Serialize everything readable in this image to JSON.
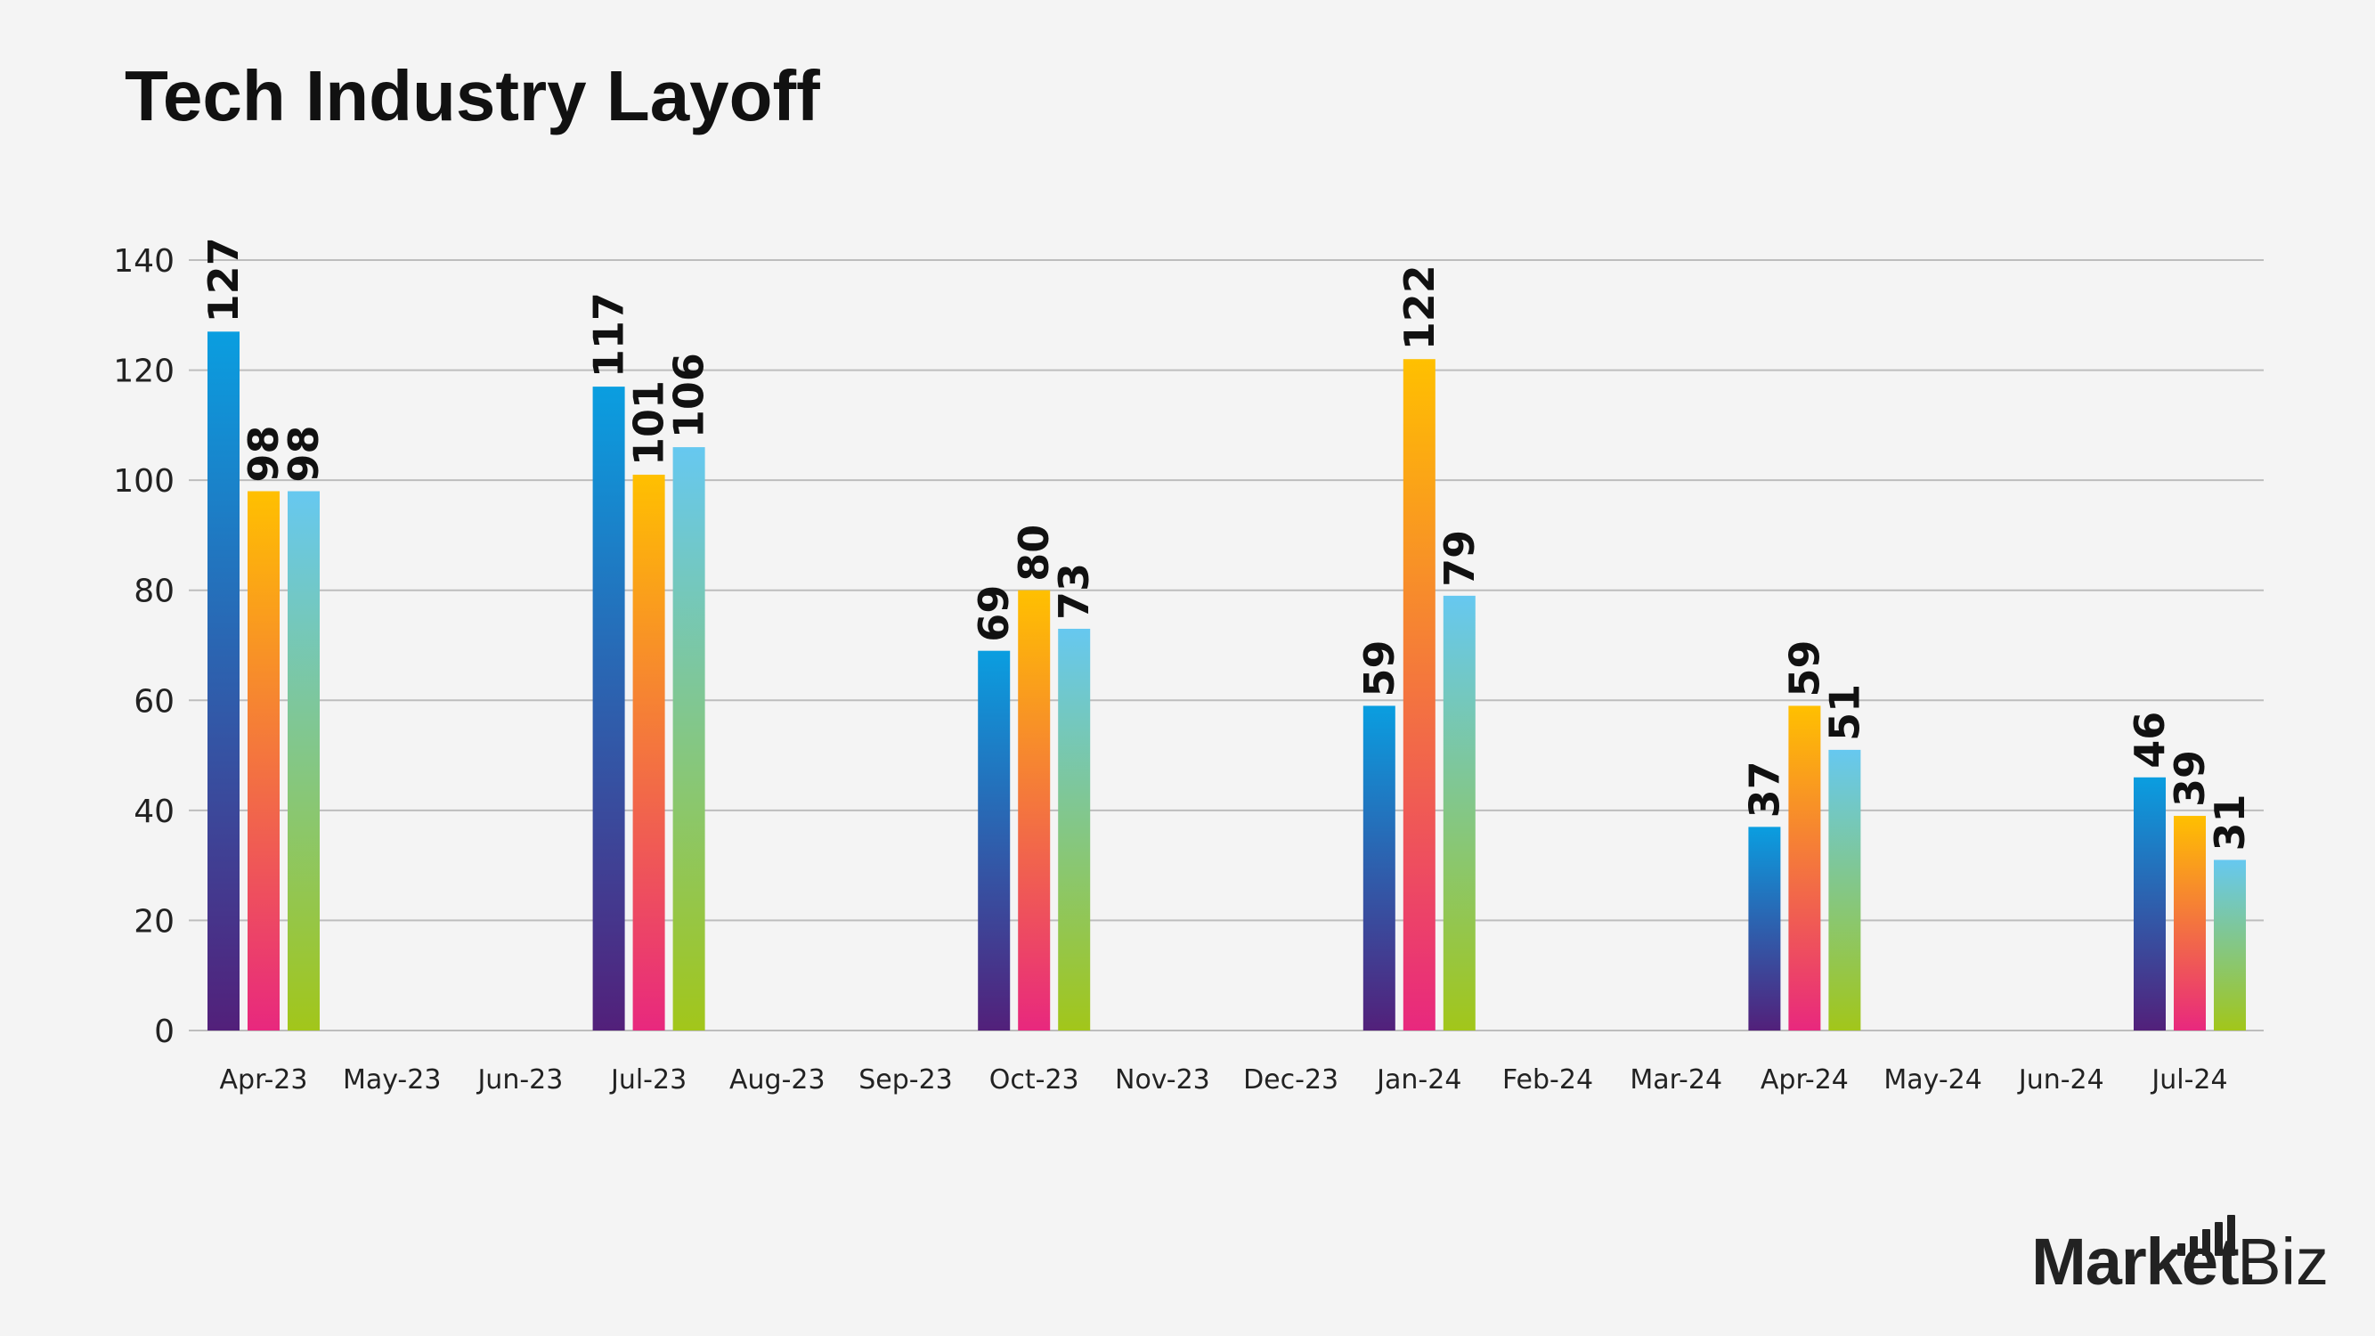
{
  "chart_data": {
    "type": "bar",
    "title": "Tech Industry Layoff",
    "categories": [
      "Apr-23",
      "May-23",
      "Jun-23",
      "Jul-23",
      "Aug-23",
      "Sep-23",
      "Oct-23",
      "Nov-23",
      "Dec-23",
      "Jan-24",
      "Feb-24",
      "Mar-24",
      "Apr-24",
      "May-24",
      "Jun-24",
      "Jul-24"
    ],
    "series": [
      {
        "values": [
          127,
          null,
          null,
          117,
          null,
          null,
          69,
          null,
          null,
          59,
          null,
          null,
          37,
          null,
          null,
          46
        ],
        "gradient": [
          "#0a9ee0",
          "#52207a"
        ]
      },
      {
        "values": [
          98,
          null,
          null,
          101,
          null,
          null,
          80,
          null,
          null,
          122,
          null,
          null,
          59,
          null,
          null,
          39
        ],
        "gradient": [
          "#ffc000",
          "#e8287e"
        ]
      },
      {
        "values": [
          98,
          null,
          null,
          106,
          null,
          null,
          73,
          null,
          null,
          79,
          null,
          null,
          51,
          null,
          null,
          31
        ],
        "gradient": [
          "#66c8f0",
          "#a2c61a"
        ]
      }
    ],
    "yticks": [
      0,
      20,
      40,
      60,
      80,
      100,
      120,
      140
    ],
    "ylim": [
      0,
      140
    ],
    "grid": true,
    "xlabel": "",
    "ylabel": ""
  },
  "brand": {
    "name_bold": "Market.",
    "name_light": "Biz"
  }
}
